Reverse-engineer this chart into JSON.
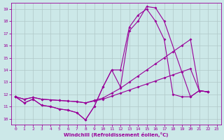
{
  "xlabel": "Windchill (Refroidissement éolien,°C)",
  "background_color": "#cce8e8",
  "grid_color": "#b0c8c8",
  "line_color": "#990099",
  "xlim": [
    -0.5,
    23.5
  ],
  "ylim": [
    9.5,
    19.5
  ],
  "xticks": [
    0,
    1,
    2,
    3,
    4,
    5,
    6,
    7,
    8,
    9,
    10,
    11,
    12,
    13,
    14,
    15,
    16,
    17,
    18,
    19,
    20,
    21,
    22,
    23
  ],
  "yticks": [
    10,
    11,
    12,
    13,
    14,
    15,
    16,
    17,
    18,
    19
  ],
  "curve1_x": [
    0,
    1,
    2,
    3,
    4,
    5,
    6,
    7,
    8,
    9,
    10,
    11,
    12,
    13,
    14,
    15,
    16,
    17,
    20,
    21,
    22
  ],
  "curve1_y": [
    11.8,
    11.3,
    11.6,
    11.1,
    11.0,
    10.8,
    10.7,
    10.5,
    9.9,
    11.0,
    12.6,
    14.0,
    12.6,
    17.2,
    18.0,
    19.2,
    19.1,
    18.0,
    11.8,
    12.3,
    12.2
  ],
  "curve2_x": [
    0,
    1,
    2,
    3,
    4,
    5,
    6,
    7,
    8,
    9,
    10,
    11,
    12,
    13,
    14,
    15,
    16,
    17,
    18,
    19,
    20,
    21,
    22
  ],
  "curve2_y": [
    11.8,
    11.3,
    11.6,
    11.1,
    11.0,
    10.8,
    10.7,
    10.5,
    9.9,
    11.0,
    12.6,
    14.0,
    14.0,
    17.5,
    18.5,
    19.0,
    18.0,
    16.5,
    12.0,
    11.8,
    11.8,
    12.3,
    12.2
  ],
  "curve3_x": [
    0,
    1,
    2,
    3,
    4,
    5,
    6,
    7,
    8,
    9,
    10,
    11,
    12,
    13,
    14,
    15,
    16,
    17,
    18,
    19,
    20,
    21,
    22
  ],
  "curve3_y": [
    11.8,
    11.6,
    11.75,
    11.6,
    11.55,
    11.5,
    11.45,
    11.4,
    11.3,
    11.5,
    11.7,
    12.1,
    12.5,
    13.0,
    13.5,
    14.0,
    14.5,
    15.0,
    15.5,
    16.0,
    16.5,
    12.3,
    12.2
  ],
  "curve4_x": [
    0,
    1,
    2,
    3,
    4,
    5,
    6,
    7,
    8,
    9,
    10,
    11,
    12,
    13,
    14,
    15,
    16,
    17,
    18,
    19,
    20,
    21,
    22
  ],
  "curve4_y": [
    11.8,
    11.6,
    11.75,
    11.6,
    11.55,
    11.5,
    11.45,
    11.4,
    11.3,
    11.45,
    11.6,
    11.85,
    12.1,
    12.35,
    12.6,
    12.85,
    13.1,
    13.35,
    13.6,
    13.85,
    14.1,
    12.3,
    12.2
  ]
}
